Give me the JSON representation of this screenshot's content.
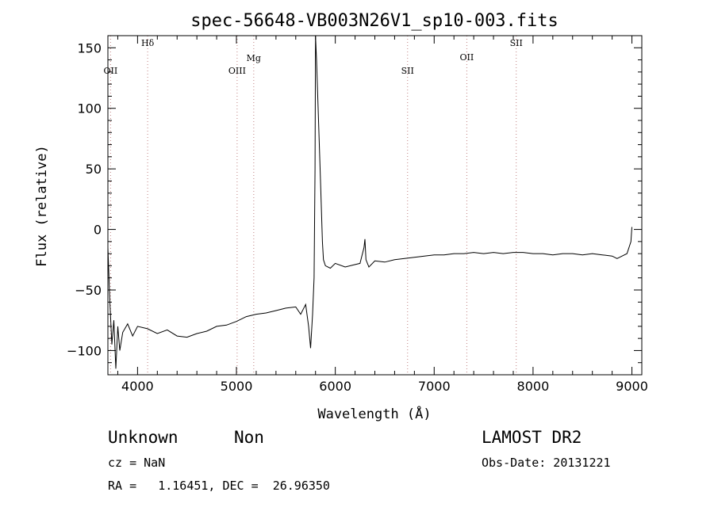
{
  "chart_data": {
    "type": "line",
    "title": "spec-56648-VB003N26V1_sp10-003.fits",
    "xlabel": "Wavelength (Å)",
    "ylabel": "Flux (relative)",
    "xlim": [
      3700,
      9100
    ],
    "ylim": [
      -120,
      160
    ],
    "xticks": [
      4000,
      5000,
      6000,
      7000,
      8000,
      9000
    ],
    "yticks": [
      -100,
      -50,
      0,
      50,
      100,
      150
    ],
    "ytick_labels": [
      "−100",
      "−50",
      "0",
      "50",
      "100",
      "150"
    ],
    "grid": false,
    "series": [
      {
        "x": [
          3700,
          3720,
          3740,
          3760,
          3780,
          3800,
          3820,
          3850,
          3900,
          3950,
          4000,
          4100,
          4200,
          4300,
          4400,
          4500,
          4600,
          4700,
          4800,
          4900,
          5000,
          5100,
          5200,
          5300,
          5400,
          5500,
          5600,
          5650,
          5700,
          5730,
          5750,
          5770,
          5785,
          5795,
          5800,
          5810,
          5830,
          5850,
          5870,
          5880,
          5900,
          5950,
          6000,
          6100,
          6200,
          6250,
          6290,
          6300,
          6310,
          6340,
          6400,
          6500,
          6600,
          6700,
          6800,
          6900,
          7000,
          7100,
          7200,
          7300,
          7400,
          7500,
          7600,
          7700,
          7800,
          7900,
          8000,
          8100,
          8200,
          8300,
          8400,
          8500,
          8600,
          8700,
          8800,
          8850,
          8900,
          8950,
          8990,
          9000
        ],
        "y": [
          -15,
          -60,
          -95,
          -75,
          -115,
          -80,
          -100,
          -85,
          -78,
          -88,
          -80,
          -82,
          -86,
          -83,
          -88,
          -89,
          -86,
          -84,
          -80,
          -79,
          -76,
          -72,
          -70,
          -69,
          -67,
          -65,
          -64,
          -70,
          -62,
          -80,
          -98,
          -70,
          -40,
          50,
          160,
          140,
          90,
          40,
          -10,
          -25,
          -30,
          -32,
          -28,
          -31,
          -29,
          -28,
          -15,
          -8,
          -25,
          -31,
          -26,
          -27,
          -25,
          -24,
          -23,
          -22,
          -21,
          -21,
          -20,
          -20,
          -19,
          -20,
          -19,
          -20,
          -19,
          -19,
          -20,
          -20,
          -21,
          -20,
          -20,
          -21,
          -20,
          -21,
          -22,
          -24,
          -22,
          -20,
          -10,
          2
        ]
      }
    ],
    "lines": [
      {
        "name": "OII",
        "x": 3727
      },
      {
        "name": "Hδ",
        "x": 4102
      },
      {
        "name": "OIII",
        "x": 5007
      },
      {
        "name": "Mg",
        "x": 5175
      },
      {
        "name": "SII",
        "x": 6731
      },
      {
        "name": "OII",
        "x": 7330
      },
      {
        "name": "SII",
        "x": 7830
      }
    ]
  },
  "info": {
    "class": "Unknown",
    "subclass": "Non",
    "survey": "LAMOST DR2",
    "cz": "cz = NaN",
    "obs_date": "Obs-Date: 20131221",
    "coords": "RA =   1.16451, DEC =  26.96350"
  }
}
